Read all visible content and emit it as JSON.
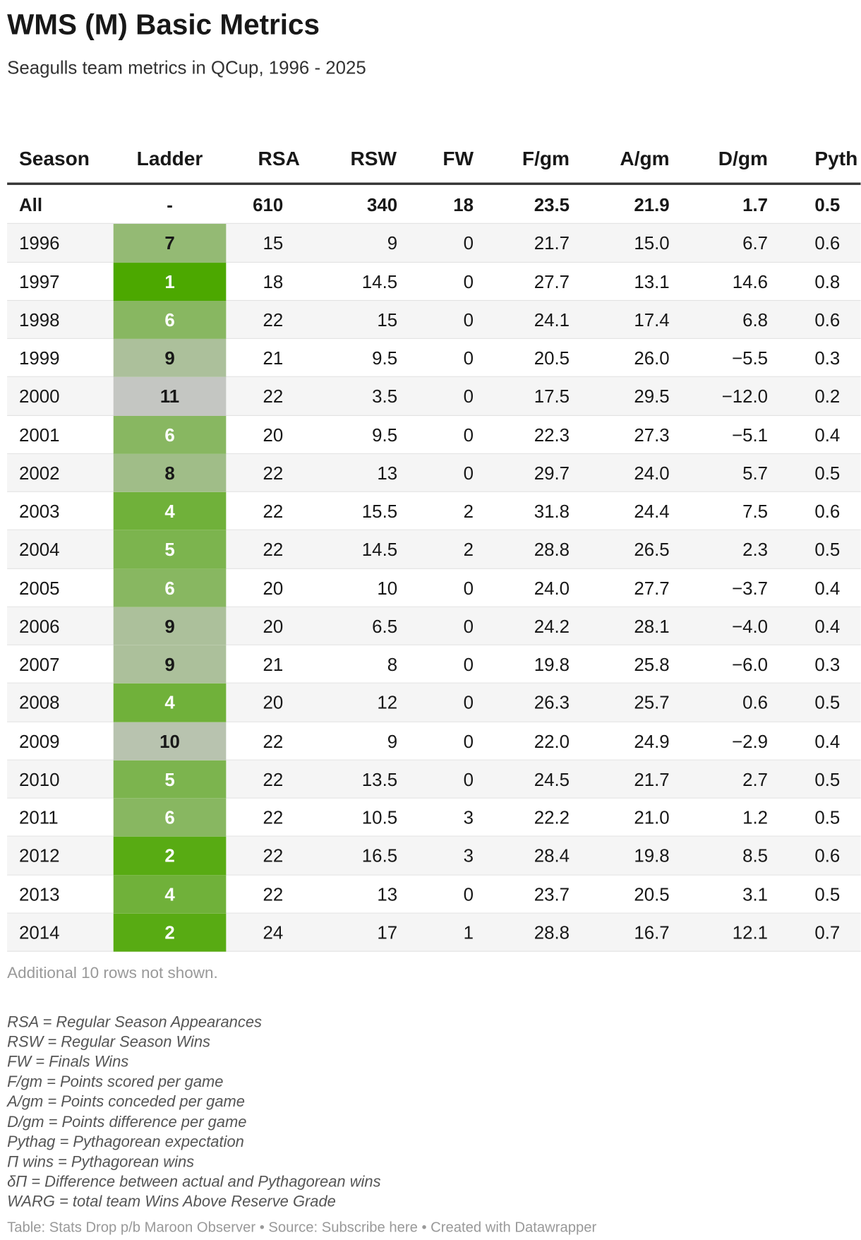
{
  "title": "WMS (M) Basic Metrics",
  "subtitle": "Seagulls team metrics in QCup, 1996 - 2025",
  "table": {
    "columns": [
      "Season",
      "Ladder",
      "RSA",
      "RSW",
      "FW",
      "F/gm",
      "A/gm",
      "D/gm",
      "Pyth"
    ],
    "rows": [
      [
        "All",
        "-",
        "610",
        "340",
        "18",
        "23.5",
        "21.9",
        "1.7",
        "0.5"
      ],
      [
        "1996",
        "7",
        "15",
        "9",
        "0",
        "21.7",
        "15.0",
        "6.7",
        "0.6"
      ],
      [
        "1997",
        "1",
        "18",
        "14.5",
        "0",
        "27.7",
        "13.1",
        "14.6",
        "0.8"
      ],
      [
        "1998",
        "6",
        "22",
        "15",
        "0",
        "24.1",
        "17.4",
        "6.8",
        "0.6"
      ],
      [
        "1999",
        "9",
        "21",
        "9.5",
        "0",
        "20.5",
        "26.0",
        "−5.5",
        "0.3"
      ],
      [
        "2000",
        "11",
        "22",
        "3.5",
        "0",
        "17.5",
        "29.5",
        "−12.0",
        "0.2"
      ],
      [
        "2001",
        "6",
        "20",
        "9.5",
        "0",
        "22.3",
        "27.3",
        "−5.1",
        "0.4"
      ],
      [
        "2002",
        "8",
        "22",
        "13",
        "0",
        "29.7",
        "24.0",
        "5.7",
        "0.5"
      ],
      [
        "2003",
        "4",
        "22",
        "15.5",
        "2",
        "31.8",
        "24.4",
        "7.5",
        "0.6"
      ],
      [
        "2004",
        "5",
        "22",
        "14.5",
        "2",
        "28.8",
        "26.5",
        "2.3",
        "0.5"
      ],
      [
        "2005",
        "6",
        "20",
        "10",
        "0",
        "24.0",
        "27.7",
        "−3.7",
        "0.4"
      ],
      [
        "2006",
        "9",
        "20",
        "6.5",
        "0",
        "24.2",
        "28.1",
        "−4.0",
        "0.4"
      ],
      [
        "2007",
        "9",
        "21",
        "8",
        "0",
        "19.8",
        "25.8",
        "−6.0",
        "0.3"
      ],
      [
        "2008",
        "4",
        "20",
        "12",
        "0",
        "26.3",
        "25.7",
        "0.6",
        "0.5"
      ],
      [
        "2009",
        "10",
        "22",
        "9",
        "0",
        "22.0",
        "24.9",
        "−2.9",
        "0.4"
      ],
      [
        "2010",
        "5",
        "22",
        "13.5",
        "0",
        "24.5",
        "21.7",
        "2.7",
        "0.5"
      ],
      [
        "2011",
        "6",
        "22",
        "10.5",
        "3",
        "22.2",
        "21.0",
        "1.2",
        "0.5"
      ],
      [
        "2012",
        "2",
        "22",
        "16.5",
        "3",
        "28.4",
        "19.8",
        "8.5",
        "0.6"
      ],
      [
        "2013",
        "4",
        "22",
        "13",
        "0",
        "23.7",
        "20.5",
        "3.1",
        "0.5"
      ],
      [
        "2014",
        "2",
        "24",
        "17",
        "1",
        "28.8",
        "16.7",
        "12.1",
        "0.7"
      ]
    ]
  },
  "more_rows": "Additional 10 rows not shown.",
  "notes": [
    "RSA = Regular Season Appearances",
    "RSW = Regular Season Wins",
    "FW = Finals Wins",
    "F/gm = Points scored per game",
    "A/gm = Points conceded per game",
    "D/gm = Points difference per game",
    "Pythag = Pythagorean expectation",
    "Π wins = Pythagorean wins",
    "δΠ = Difference between actual and Pythagorean wins",
    "WARG = total team Wins Above Reserve Grade"
  ],
  "byline": {
    "before": "Table: Stats Drop p/b Maroon Observer • Source: ",
    "link": "Subscribe here",
    "after": " • Created with Datawrapper"
  }
}
